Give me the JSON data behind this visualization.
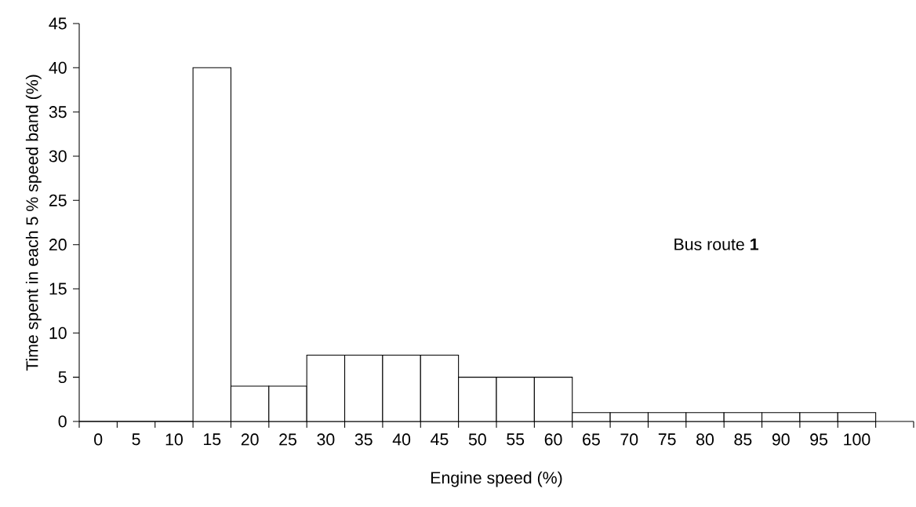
{
  "chart_data": {
    "type": "bar",
    "xlabel": "Engine speed (%)",
    "ylabel": "Time spent in each 5 % speed band (%)",
    "categories": [
      "0",
      "5",
      "10",
      "15",
      "20",
      "25",
      "30",
      "35",
      "40",
      "45",
      "50",
      "55",
      "60",
      "65",
      "70",
      "75",
      "80",
      "85",
      "90",
      "95",
      "100"
    ],
    "values": [
      0,
      0,
      0,
      40,
      4,
      4,
      7.5,
      7.5,
      7.5,
      7.5,
      5,
      5,
      5,
      1,
      1,
      1,
      1,
      1,
      1,
      1,
      1
    ],
    "color": "#ffffff",
    "ylim": [
      0,
      45
    ],
    "yticks": [
      0,
      5,
      10,
      15,
      20,
      25,
      30,
      35,
      40,
      45
    ],
    "annotations": [
      "Bus route **1**"
    ]
  }
}
